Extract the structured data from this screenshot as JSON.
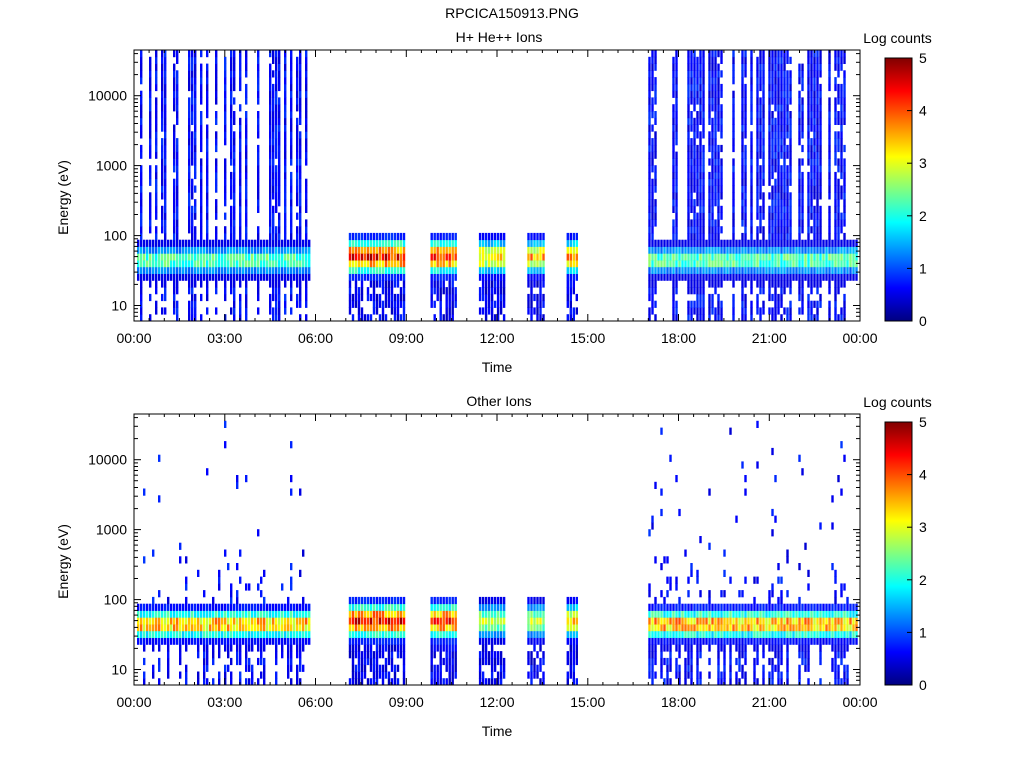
{
  "page_title": "RPCICA150913.PNG",
  "colors": {
    "background": "#ffffff",
    "axes": "#000000",
    "colormap": [
      "#000080",
      "#0000ff",
      "#0080ff",
      "#00ffff",
      "#80ff80",
      "#ffff00",
      "#ff8000",
      "#ff0000",
      "#800000"
    ]
  },
  "chart_data": [
    {
      "type": "heatmap",
      "title": "H+ He++ Ions",
      "xlabel": "Time",
      "ylabel": "Energy (eV)",
      "x_unit": "hours",
      "xlim": [
        0,
        24
      ],
      "x_ticks": [
        0,
        3,
        6,
        9,
        12,
        15,
        18,
        21,
        24
      ],
      "x_tick_labels": [
        "00:00",
        "03:00",
        "06:00",
        "09:00",
        "12:00",
        "15:00",
        "18:00",
        "21:00",
        "00:00"
      ],
      "y_scale": "log",
      "ylim": [
        6,
        45000
      ],
      "y_ticks": [
        10,
        100,
        1000,
        10000
      ],
      "y_tick_labels": [
        "10",
        "100",
        "1000",
        "10000"
      ],
      "colorbar": {
        "label": "Log counts",
        "range": [
          0,
          5
        ],
        "ticks": [
          0,
          1,
          2,
          3,
          4,
          5
        ],
        "tick_labels": [
          "0",
          "1",
          "2",
          "3",
          "4",
          "5"
        ]
      },
      "data_intervals": [
        {
          "start": 0.1,
          "end": 5.8,
          "mode": "solar-wind",
          "peak_energy": 45,
          "peak_log_counts": 2.8,
          "max_energy": 45000
        },
        {
          "start": 7.1,
          "end": 8.9,
          "mode": "burst",
          "peak_energy": 50,
          "peak_log_counts": 4.9,
          "max_energy": 95
        },
        {
          "start": 9.8,
          "end": 10.6,
          "mode": "burst",
          "peak_energy": 50,
          "peak_log_counts": 4.7,
          "max_energy": 95
        },
        {
          "start": 11.4,
          "end": 12.2,
          "mode": "burst",
          "peak_energy": 50,
          "peak_log_counts": 3.8,
          "max_energy": 95
        },
        {
          "start": 13.0,
          "end": 13.5,
          "mode": "burst",
          "peak_energy": 50,
          "peak_log_counts": 4.0,
          "max_energy": 95
        },
        {
          "start": 14.3,
          "end": 14.6,
          "mode": "burst",
          "peak_energy": 50,
          "peak_log_counts": 4.2,
          "max_energy": 95
        },
        {
          "start": 17.0,
          "end": 23.9,
          "mode": "solar-wind",
          "peak_energy": 45,
          "peak_log_counts": 2.8,
          "max_energy": 45000
        }
      ]
    },
    {
      "type": "heatmap",
      "title": "Other Ions",
      "xlabel": "Time",
      "ylabel": "Energy (eV)",
      "x_unit": "hours",
      "xlim": [
        0,
        24
      ],
      "x_ticks": [
        0,
        3,
        6,
        9,
        12,
        15,
        18,
        21,
        24
      ],
      "x_tick_labels": [
        "00:00",
        "03:00",
        "06:00",
        "09:00",
        "12:00",
        "15:00",
        "18:00",
        "21:00",
        "00:00"
      ],
      "y_scale": "log",
      "ylim": [
        6,
        45000
      ],
      "y_ticks": [
        10,
        100,
        1000,
        10000
      ],
      "y_tick_labels": [
        "10",
        "100",
        "1000",
        "10000"
      ],
      "colorbar": {
        "label": "Log counts",
        "range": [
          0,
          5
        ],
        "ticks": [
          0,
          1,
          2,
          3,
          4,
          5
        ],
        "tick_labels": [
          "0",
          "1",
          "2",
          "3",
          "4",
          "5"
        ]
      },
      "data_intervals": [
        {
          "start": 0.1,
          "end": 5.8,
          "mode": "solar-wind",
          "peak_energy": 45,
          "peak_log_counts": 4.2,
          "max_energy": 45000
        },
        {
          "start": 7.1,
          "end": 8.9,
          "mode": "burst",
          "peak_energy": 50,
          "peak_log_counts": 4.9,
          "max_energy": 95
        },
        {
          "start": 9.8,
          "end": 10.6,
          "mode": "burst",
          "peak_energy": 50,
          "peak_log_counts": 4.8,
          "max_energy": 95
        },
        {
          "start": 11.4,
          "end": 12.2,
          "mode": "burst",
          "peak_energy": 50,
          "peak_log_counts": 3.2,
          "max_energy": 95
        },
        {
          "start": 13.0,
          "end": 13.5,
          "mode": "burst",
          "peak_energy": 50,
          "peak_log_counts": 3.3,
          "max_energy": 95
        },
        {
          "start": 14.3,
          "end": 14.6,
          "mode": "burst",
          "peak_energy": 50,
          "peak_log_counts": 4.0,
          "max_energy": 95
        },
        {
          "start": 17.0,
          "end": 23.9,
          "mode": "solar-wind",
          "peak_energy": 45,
          "peak_log_counts": 4.3,
          "max_energy": 45000
        }
      ]
    }
  ]
}
